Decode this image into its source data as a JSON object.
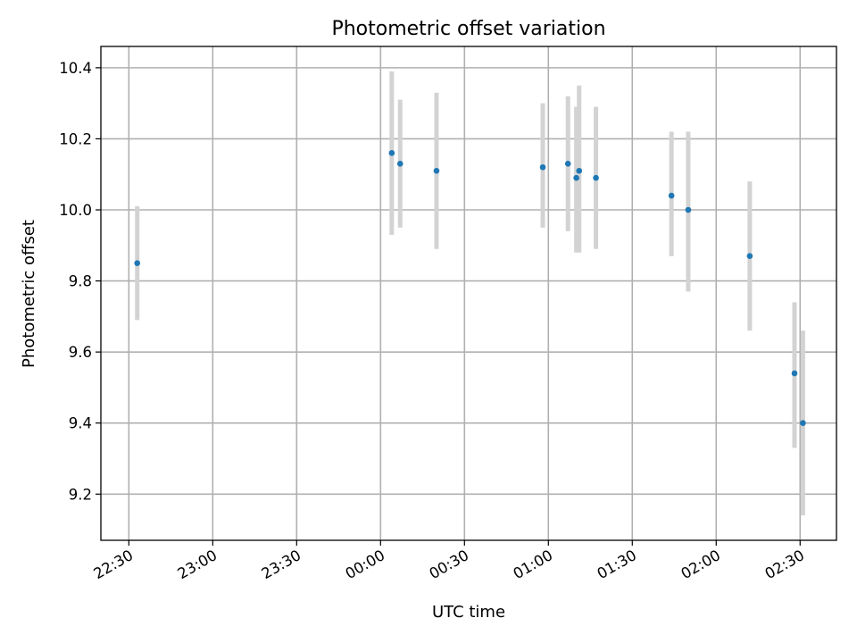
{
  "chart_data": {
    "type": "scatter",
    "title": "Photometric offset variation",
    "xlabel": "UTC time",
    "ylabel": "Photometric offset",
    "xlim": [
      "22:20",
      "02:43"
    ],
    "ylim": [
      9.07,
      10.46
    ],
    "x_ticks": [
      "22:30",
      "23:00",
      "23:30",
      "00:00",
      "00:30",
      "01:00",
      "01:30",
      "02:00",
      "02:30"
    ],
    "y_ticks": [
      9.2,
      9.4,
      9.6,
      9.8,
      10.0,
      10.2,
      10.4
    ],
    "y_tick_labels": [
      "9.2",
      "9.4",
      "9.6",
      "9.8",
      "10.0",
      "10.2",
      "10.4"
    ],
    "grid": true,
    "colors": {
      "point": "#1f77b4",
      "errorbar": "#d3d3d3"
    },
    "series": [
      {
        "points": [
          {
            "x": "22:33",
            "y": 9.85,
            "ylow": 9.69,
            "yhigh": 10.01
          },
          {
            "x": "00:04",
            "y": 10.16,
            "ylow": 9.93,
            "yhigh": 10.39
          },
          {
            "x": "00:07",
            "y": 10.13,
            "ylow": 9.95,
            "yhigh": 10.31
          },
          {
            "x": "00:20",
            "y": 10.11,
            "ylow": 9.89,
            "yhigh": 10.33
          },
          {
            "x": "00:58",
            "y": 10.12,
            "ylow": 9.95,
            "yhigh": 10.3
          },
          {
            "x": "01:07",
            "y": 10.13,
            "ylow": 9.94,
            "yhigh": 10.32
          },
          {
            "x": "01:10",
            "y": 10.09,
            "ylow": 9.88,
            "yhigh": 10.29
          },
          {
            "x": "01:11",
            "y": 10.11,
            "ylow": 9.88,
            "yhigh": 10.35
          },
          {
            "x": "01:17",
            "y": 10.09,
            "ylow": 9.89,
            "yhigh": 10.29
          },
          {
            "x": "01:44",
            "y": 10.04,
            "ylow": 9.87,
            "yhigh": 10.22
          },
          {
            "x": "01:50",
            "y": 10.0,
            "ylow": 9.77,
            "yhigh": 10.22
          },
          {
            "x": "02:12",
            "y": 9.87,
            "ylow": 9.66,
            "yhigh": 10.08
          },
          {
            "x": "02:28",
            "y": 9.54,
            "ylow": 9.33,
            "yhigh": 9.74
          },
          {
            "x": "02:31",
            "y": 9.4,
            "ylow": 9.14,
            "yhigh": 9.66
          }
        ]
      }
    ]
  }
}
